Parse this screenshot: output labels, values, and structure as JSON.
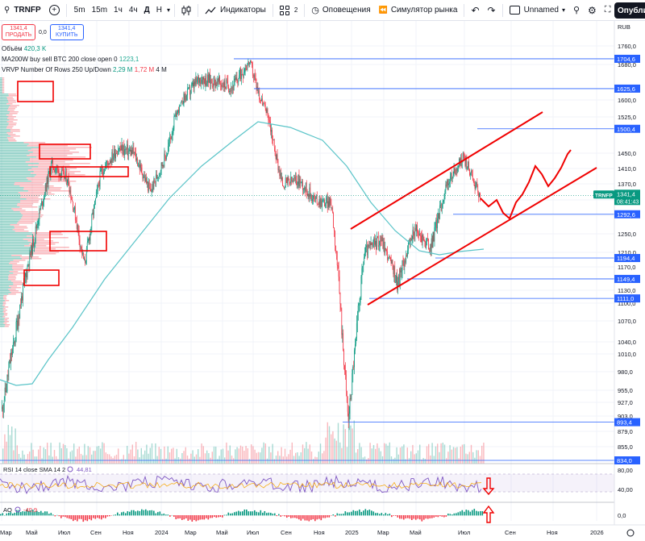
{
  "toolbar": {
    "symbol": "TRNFP",
    "add_symbol_icon": "plus-circle-icon",
    "timeframes": [
      "5m",
      "15m",
      "1ч",
      "4ч",
      "Д",
      "Н"
    ],
    "active_timeframe": "Д",
    "bar_style_icon": "candles-icon",
    "indicators_label": "Индикаторы",
    "layout_count": "2",
    "alerts_label": "Оповещения",
    "replay_label": "Симулятор рынка",
    "layout_name": "Unnamed",
    "publish_label": "Опубликовать"
  },
  "legend": {
    "sell_price": "1341,4",
    "sell_label": "ПРОДАТЬ",
    "spread": "0,0",
    "buy_price": "1341,4",
    "buy_label": "КУПИТЬ",
    "volume_label": "Объём",
    "volume_value": "420,3 K",
    "ma_label": "MA200W buy sell BTC 200 close open 0",
    "ma_value": "1223,1",
    "vrvp_label": "VRVP Number Of Rows 250 Up/Down",
    "vrvp_v1": "2,29 M",
    "vrvp_v2": "1,72 M",
    "vrvp_v3": "4 M"
  },
  "price_axis": {
    "currency": "RUB",
    "ticks": [
      "1760,0",
      "1680,0",
      "1600,0",
      "1525,0",
      "1450,0",
      "1410,0",
      "1370,0",
      "1330,0",
      "1290,0",
      "1250,0",
      "1210,0",
      "1170,0",
      "1130,0",
      "1100,0",
      "1070,0",
      "1040,0",
      "1010,0",
      "980,0",
      "955,0",
      "927,0",
      "903,0",
      "879,0",
      "855,0",
      "834,0"
    ],
    "last_symbol": "TRNFP",
    "last_price": "1341,4",
    "countdown": "08:41:43"
  },
  "levels": [
    {
      "price": 1704.6,
      "label": "1704,6"
    },
    {
      "price": 1625.6,
      "label": "1625,6"
    },
    {
      "price": 1500.4,
      "label": "1500,4"
    },
    {
      "price": 1292.6,
      "label": "1292,6"
    },
    {
      "price": 1194.4,
      "label": "1194,4"
    },
    {
      "price": 1149.4,
      "label": "1149,4"
    },
    {
      "price": 1111.0,
      "label": "1111,0"
    },
    {
      "price": 893.4,
      "label": "893,4"
    },
    {
      "price": 834.0,
      "label": "834,0"
    }
  ],
  "time_axis": [
    "Мар",
    "Май",
    "Июл",
    "Сен",
    "Ноя",
    "2024",
    "Мар",
    "Май",
    "Июл",
    "Сен",
    "Ноя",
    "2025",
    "Мар",
    "Май",
    "Июл",
    "Сен",
    "Ноя",
    "2026"
  ],
  "rsi": {
    "label": "RSI 14 close SMA 14 2",
    "value": "44,81",
    "ticks": [
      "80,00",
      "40,00"
    ]
  },
  "ao": {
    "label": "AO",
    "value": "-40,9",
    "ticks": [
      "0,0"
    ]
  },
  "colors": {
    "up": "#089981",
    "down": "#f23645",
    "ma": "#5ac4c8",
    "levels": "#2962ff",
    "drawing": "#f00000"
  },
  "chart_data": {
    "type": "candlestick",
    "symbol": "TRNFP",
    "timeframe": "D",
    "x_range": [
      "2023-03",
      "2026-01"
    ],
    "ylim": [
      834,
      1790
    ],
    "approx_close_path": [
      {
        "t": "2023-03",
        "close": 915
      },
      {
        "t": "2023-04",
        "close": 1080
      },
      {
        "t": "2023-05",
        "close": 1250
      },
      {
        "t": "2023-06",
        "close": 1420
      },
      {
        "t": "2023-07",
        "close": 1380
      },
      {
        "t": "2023-08",
        "close": 1180
      },
      {
        "t": "2023-09",
        "close": 1400
      },
      {
        "t": "2023-10",
        "close": 1460
      },
      {
        "t": "2023-11",
        "close": 1450
      },
      {
        "t": "2023-12",
        "close": 1350
      },
      {
        "t": "2024-01",
        "close": 1450
      },
      {
        "t": "2024-02",
        "close": 1600
      },
      {
        "t": "2024-03",
        "close": 1650
      },
      {
        "t": "2024-04",
        "close": 1640
      },
      {
        "t": "2024-05",
        "close": 1630
      },
      {
        "t": "2024-06",
        "close": 1690
      },
      {
        "t": "2024-07",
        "close": 1560
      },
      {
        "t": "2024-08",
        "close": 1370
      },
      {
        "t": "2024-09",
        "close": 1380
      },
      {
        "t": "2024-10",
        "close": 1330
      },
      {
        "t": "2024-11",
        "close": 1320
      },
      {
        "t": "2024-12",
        "close": 895
      },
      {
        "t": "2025-01",
        "close": 1210
      },
      {
        "t": "2025-02",
        "close": 1240
      },
      {
        "t": "2025-03",
        "close": 1140
      },
      {
        "t": "2025-04",
        "close": 1260
      },
      {
        "t": "2025-05",
        "close": 1220
      },
      {
        "t": "2025-06",
        "close": 1370
      },
      {
        "t": "2025-07",
        "close": 1440
      },
      {
        "t": "2025-08",
        "close": 1341.4
      }
    ],
    "last_price": 1341.4
  }
}
